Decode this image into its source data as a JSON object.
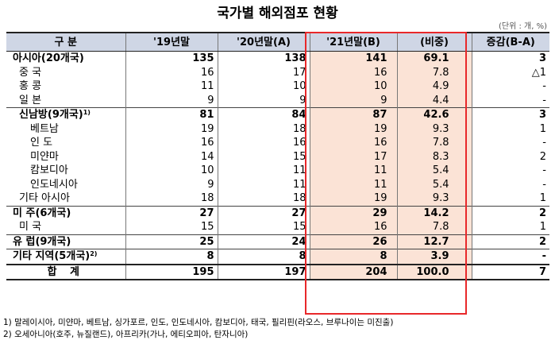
{
  "title": "국가별 해외점포 현황",
  "unit": "(단위 : 개, %)",
  "headers": [
    "구 분",
    "'19년말",
    "'20년말(A)",
    "'21년말(B)",
    "(비중)",
    "증감(B-A)"
  ],
  "rows": [
    {
      "label": "아시아(20개국)",
      "sup": "",
      "level": "group",
      "y19": "135",
      "y20": "138",
      "y21": "141",
      "share": "69.1",
      "change": "3"
    },
    {
      "label": "중 국",
      "sup": "",
      "level": "sub",
      "y19": "16",
      "y20": "17",
      "y21": "16",
      "share": "7.8",
      "change": "△1"
    },
    {
      "label": "홍 콩",
      "sup": "",
      "level": "sub",
      "y19": "11",
      "y20": "10",
      "y21": "10",
      "share": "4.9",
      "change": "-"
    },
    {
      "label": "일 본",
      "sup": "",
      "level": "sub",
      "y19": "9",
      "y20": "9",
      "y21": "9",
      "share": "4.4",
      "change": "-"
    },
    {
      "label": "신남방(9개국)",
      "sup": "1)",
      "level": "subgroup",
      "y19": "81",
      "y20": "84",
      "y21": "87",
      "share": "42.6",
      "change": "3"
    },
    {
      "label": "베트남",
      "sup": "",
      "level": "sub2",
      "y19": "19",
      "y20": "18",
      "y21": "19",
      "share": "9.3",
      "change": "1"
    },
    {
      "label": "인 도",
      "sup": "",
      "level": "sub2",
      "y19": "16",
      "y20": "16",
      "y21": "16",
      "share": "7.8",
      "change": "-"
    },
    {
      "label": "미얀마",
      "sup": "",
      "level": "sub2",
      "y19": "14",
      "y20": "15",
      "y21": "17",
      "share": "8.3",
      "change": "2"
    },
    {
      "label": "캄보디아",
      "sup": "",
      "level": "sub2",
      "y19": "10",
      "y20": "11",
      "y21": "11",
      "share": "5.4",
      "change": "-"
    },
    {
      "label": "인도네시아",
      "sup": "",
      "level": "sub2",
      "y19": "9",
      "y20": "11",
      "y21": "11",
      "share": "5.4",
      "change": "-"
    },
    {
      "label": "기타 아시아",
      "sup": "",
      "level": "sub",
      "y19": "18",
      "y20": "18",
      "y21": "19",
      "share": "9.3",
      "change": "1"
    },
    {
      "label": "미 주(6개국)",
      "sup": "",
      "level": "group",
      "y19": "27",
      "y20": "27",
      "y21": "29",
      "share": "14.2",
      "change": "2"
    },
    {
      "label": "미 국",
      "sup": "",
      "level": "sub",
      "y19": "15",
      "y20": "15",
      "y21": "16",
      "share": "7.8",
      "change": "1"
    },
    {
      "label": "유 럽(9개국)",
      "sup": "",
      "level": "group",
      "y19": "25",
      "y20": "24",
      "y21": "26",
      "share": "12.7",
      "change": "2"
    },
    {
      "label": "기타 지역(5개국)",
      "sup": "2)",
      "level": "group",
      "y19": "8",
      "y20": "8",
      "y21": "8",
      "share": "3.9",
      "change": "-"
    },
    {
      "label": "합 계",
      "sup": "",
      "level": "total",
      "y19": "195",
      "y20": "197",
      "y21": "204",
      "share": "100.0",
      "change": "7"
    }
  ],
  "notes": [
    "1) 말레이시아, 미얀마, 베트남, 싱가포르, 인도, 인도네시아, 캄보디아, 태국, 필리핀(라오스, 브루나이는 미진출)",
    "2) 오세아니아(호주, 뉴질랜드), 아프리카(가나, 에티오피아, 탄자니아)"
  ]
}
